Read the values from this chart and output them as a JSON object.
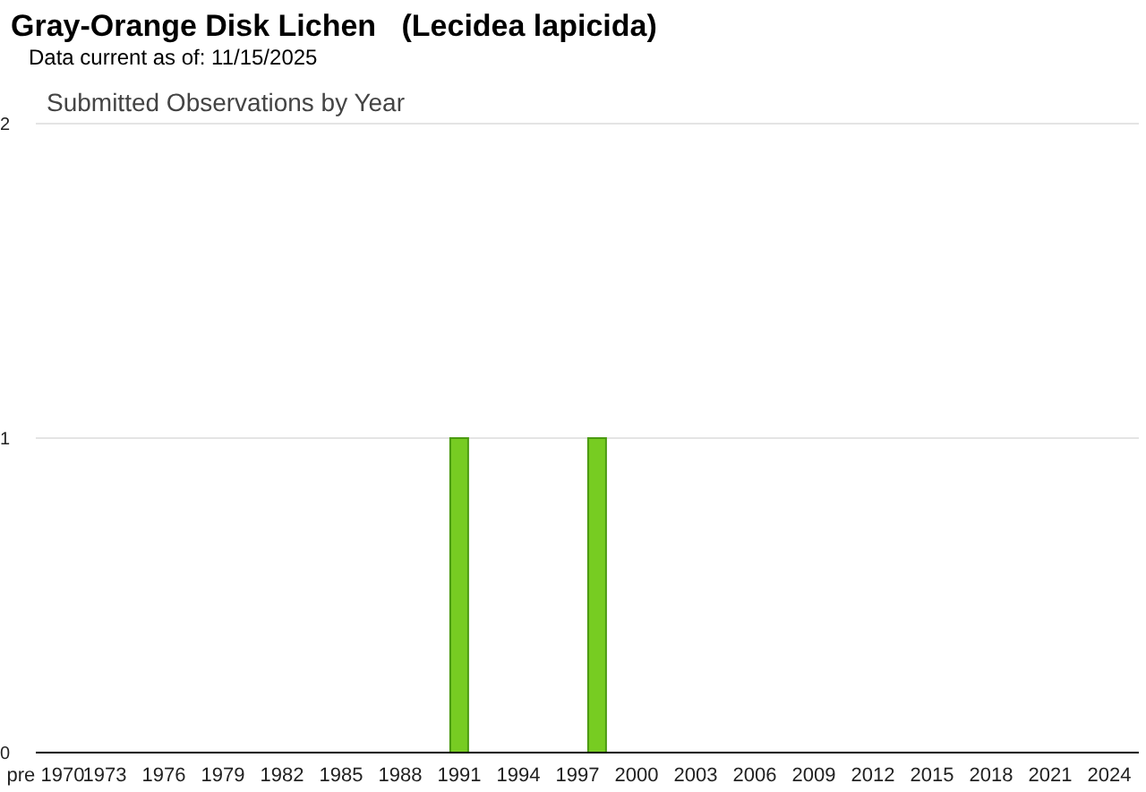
{
  "chart_data": {
    "type": "bar",
    "title": "Gray-Orange Disk Lichen   (Lecidea lapicida)",
    "subtitle": "Data current as of: 11/15/2025",
    "annotations": [
      "Submitted Observations by Year"
    ],
    "categories": [
      "pre 1970",
      null,
      null,
      "1973",
      null,
      null,
      "1976",
      null,
      null,
      "1979",
      null,
      null,
      "1982",
      null,
      null,
      "1985",
      null,
      null,
      "1988",
      null,
      null,
      "1991",
      null,
      null,
      "1994",
      null,
      null,
      "1997",
      null,
      null,
      "2000",
      null,
      null,
      "2003",
      null,
      null,
      "2006",
      null,
      null,
      "2009",
      null,
      null,
      "2012",
      null,
      null,
      "2015",
      null,
      null,
      "2018",
      null,
      null,
      "2021",
      null,
      null,
      "2024",
      null
    ],
    "values": [
      0,
      0,
      0,
      0,
      0,
      0,
      0,
      0,
      0,
      0,
      0,
      0,
      0,
      0,
      0,
      0,
      0,
      0,
      0,
      0,
      0,
      1,
      0,
      0,
      0,
      0,
      0,
      0,
      1,
      0,
      0,
      0,
      0,
      0,
      0,
      0,
      0,
      0,
      0,
      0,
      0,
      0,
      0,
      0,
      0,
      0,
      0,
      0,
      0,
      0,
      0,
      0,
      0,
      0,
      0,
      0
    ],
    "color": "#77cc22",
    "ylim": [
      0,
      2
    ],
    "yticks": [
      0,
      1,
      2
    ],
    "grid": "y",
    "legend": false
  }
}
